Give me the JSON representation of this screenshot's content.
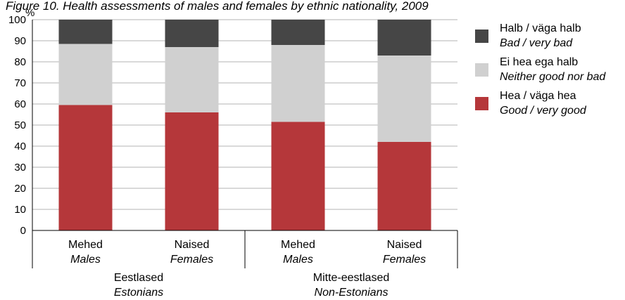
{
  "title": "Figure 10. Health assessments of males and females by ethnic nationality, 2009",
  "chart_data": {
    "type": "bar",
    "stacked": true,
    "ylabel": "%",
    "ylim": [
      0,
      100
    ],
    "yticks": [
      0,
      10,
      20,
      30,
      40,
      50,
      60,
      70,
      80,
      90,
      100
    ],
    "grid": true,
    "legend_position": "right",
    "categories": [
      {
        "label": "Mehed",
        "label_en": "Males",
        "group": 0
      },
      {
        "label": "Naised",
        "label_en": "Females",
        "group": 0
      },
      {
        "label": "Mehed",
        "label_en": "Males",
        "group": 1
      },
      {
        "label": "Naised",
        "label_en": "Females",
        "group": 1
      }
    ],
    "groups": [
      {
        "label": "Eestlased",
        "label_en": "Estonians"
      },
      {
        "label": "Mitte-eestlased",
        "label_en": "Non-Estonians"
      }
    ],
    "series": [
      {
        "name": "Hea / väga hea",
        "name_en": "Good / very good",
        "color": "#b5373a",
        "values": [
          59.5,
          56,
          51.5,
          42
        ]
      },
      {
        "name": "Ei hea ega halb",
        "name_en": "Neither good nor bad",
        "color": "#d0d0d0",
        "values": [
          29,
          31,
          36.5,
          41
        ]
      },
      {
        "name": "Halb / väga halb",
        "name_en": "Bad / very bad",
        "color": "#464646",
        "values": [
          11.5,
          13,
          12,
          17
        ]
      }
    ]
  }
}
